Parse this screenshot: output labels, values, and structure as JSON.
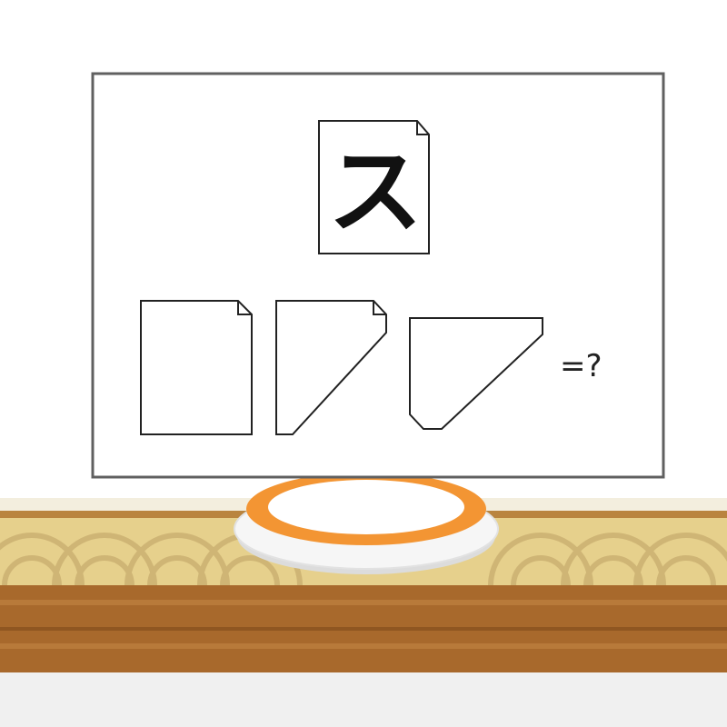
{
  "puzzle": {
    "character": "ス",
    "equals_question": "=?"
  },
  "colors": {
    "board_border": "#606060",
    "board_fill": "#ffffff",
    "counter_light": "#e6d08c",
    "counter_arc": "#cdb373",
    "counter_dark": "#a8692c",
    "counter_stripe": "#b87a3a",
    "plate_rim": "#f39533",
    "plate_fill": "#ffffff",
    "floor": "#f0f0f0"
  }
}
